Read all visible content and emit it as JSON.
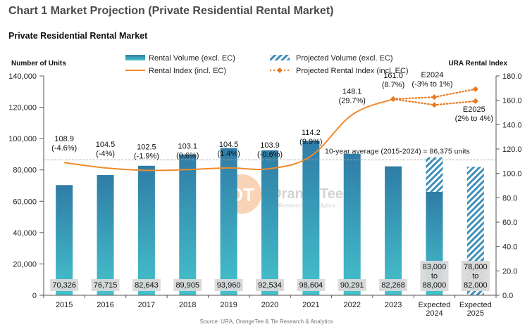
{
  "page": {
    "title": "Chart 1 Market Projection (Private Residential Rental Market)"
  },
  "watermark": {
    "brand": "OrangeTee",
    "sub": "Research & Analytics"
  },
  "chart_data": {
    "type": "bar",
    "title": "Private Residential Rental Market",
    "ylabel": "Number of Units",
    "y2label": "URA Rental Index",
    "ylim": [
      0,
      140000
    ],
    "y2lim": [
      0,
      180
    ],
    "yticks": [
      "0",
      "20,000",
      "40,000",
      "60,000",
      "80,000",
      "100,000",
      "120,000",
      "140,000"
    ],
    "y2ticks": [
      "0.0",
      "20.0",
      "40.0",
      "60.0",
      "80.0",
      "100.0",
      "120.0",
      "140.0",
      "160.0",
      "180.0"
    ],
    "categories": [
      "2015",
      "2016",
      "2017",
      "2018",
      "2019",
      "2020",
      "2021",
      "2022",
      "2023",
      "Expected\n2024",
      "Expected\n2025"
    ],
    "legend": {
      "rental_volume": "Rental Volume (excl. EC)",
      "projected_volume": "Projected Volume (excl. EC)",
      "rental_index": "Rental Index (incl. EC)",
      "projected_index": "Projected Rental Index (incl. EC)"
    },
    "rental_volume": [
      70326,
      76715,
      82643,
      89905,
      93960,
      92534,
      98604,
      90291,
      82268,
      66000,
      null
    ],
    "projected_volume": [
      {
        "category": "Expected\n2024",
        "low": 83000,
        "high": 88000
      },
      {
        "category": "Expected\n2025",
        "low": 78000,
        "high": 82000
      }
    ],
    "volume_labels": [
      "70,326",
      "76,715",
      "82,643",
      "89,905",
      "93,960",
      "92,534",
      "98,604",
      "90,291",
      "82,268",
      "83,000\nto\n88,000",
      "78,000\nto\n82,000"
    ],
    "rental_index": [
      108.9,
      104.5,
      102.5,
      103.1,
      104.5,
      103.9,
      114.2,
      148.1,
      161.0
    ],
    "index_labels": [
      "108.9\n(-4.6%)",
      "104.5\n(-4%)",
      "102.5\n(-1.9%)",
      "103.1\n(0.6%)",
      "104.5\n(1.4%)",
      "103.9\n(-0.6%)",
      "114.2\n(9.9%)",
      "148.1\n(29.7%)",
      "161.0\n(8.7%)"
    ],
    "projected_index": {
      "upper": [
        161.0,
        162.6,
        169.2
      ],
      "lower": [
        161.0,
        156.2,
        159.3
      ]
    },
    "projection_labels": {
      "e2024": "E2024\n(-3% to 1%)",
      "e2025": "E2025\n(2% to 4%)"
    },
    "average": {
      "value": 86375,
      "label": "10-year average (2015-2024) = 86,375 units"
    },
    "source": "Source: URA, OrangeTee & Tie Research & Analytics",
    "colors": {
      "bar_top": "#2f7ca6",
      "bar_bottom": "#45c2cc",
      "index_line": "#f08a2c",
      "projected_marker": "#e8791e",
      "hatch": "#3d8fb8",
      "label_box": "#d9d9d9"
    }
  }
}
